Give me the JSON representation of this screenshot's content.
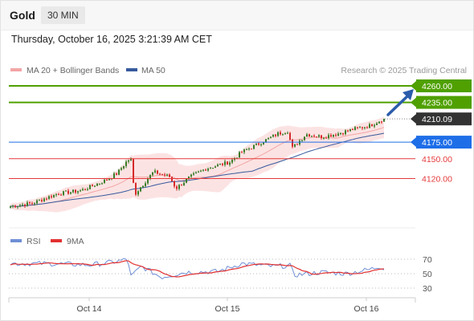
{
  "header": {
    "title": "Gold",
    "timeframe": "30 MIN"
  },
  "timestamp": "Thursday, October 16, 2025 3:21:39 AM CET",
  "legend": {
    "ma20": "MA 20 + Bollinger Bands",
    "ma50": "MA 50",
    "copyright": "Research © 2025 Trading Central"
  },
  "colors": {
    "resistance": "#4fa000",
    "support": "#1e6ee8",
    "weak_support": "#e5393b",
    "current": "#333333",
    "candle_up": "#3a7d2a",
    "candle_down": "#d62a2a",
    "bollinger_fill": "#fbdada",
    "ma20": "#f2a5a5",
    "ma50": "#375a9e",
    "rsi": "#6f8fd6",
    "rsi_ma": "#e23030",
    "arrow": "#2b5cab"
  },
  "price_levels": [
    {
      "value": 4260,
      "label": "4260.00",
      "type": "resistance"
    },
    {
      "value": 4235,
      "label": "4235.00",
      "type": "resistance"
    },
    {
      "value": 4210.09,
      "label": "4210.09",
      "type": "current"
    },
    {
      "value": 4175,
      "label": "4175.00",
      "type": "support"
    },
    {
      "value": 4150,
      "label": "4150.00",
      "type": "weak_support"
    },
    {
      "value": 4120,
      "label": "4120.00",
      "type": "weak_support"
    }
  ],
  "indicator": {
    "rsi_label": "RSI",
    "ma_label": "9MA",
    "ticks": [
      "70",
      "50",
      "30"
    ]
  },
  "x_axis": {
    "labels": [
      "Oct 14",
      "Oct 15",
      "Oct 16"
    ]
  }
}
